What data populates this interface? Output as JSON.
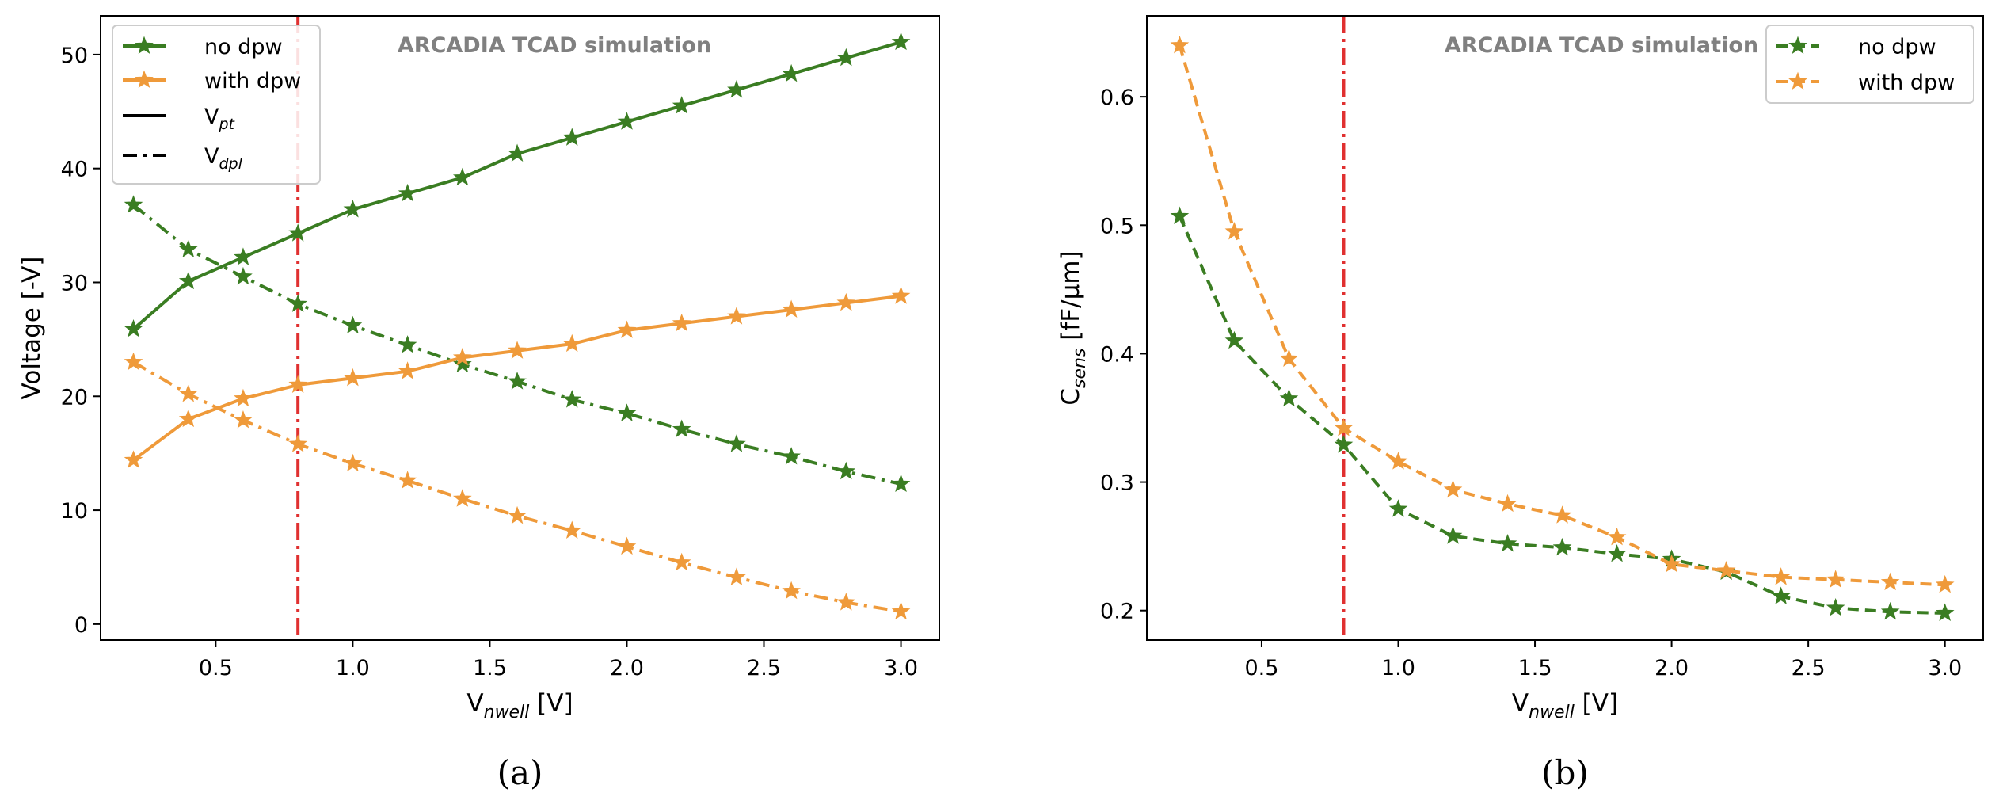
{
  "chart_data": [
    {
      "type": "line",
      "panel_label": "(a)",
      "annotation": "ARCADIA TCAD simulation",
      "xlabel_main": "V",
      "xlabel_sub": "nwell",
      "xlabel_unit": " [V]",
      "ylabel": "Voltage [-V]",
      "xlim": [
        0.08,
        3.14
      ],
      "ylim": [
        -1.4,
        53.4
      ],
      "xticks": [
        0.5,
        1.0,
        1.5,
        2.0,
        2.5,
        3.0
      ],
      "xtick_labels": [
        "0.5",
        "1.0",
        "1.5",
        "2.0",
        "2.5",
        "3.0"
      ],
      "yticks": [
        0,
        10,
        20,
        30,
        40,
        50
      ],
      "ytick_labels": [
        "0",
        "10",
        "20",
        "30",
        "40",
        "50"
      ],
      "vline_x": 0.8,
      "legend_position": "top-left",
      "legend": {
        "no_dpw": "no dpw",
        "with_dpw": "with dpw",
        "vpt_main": "V",
        "vpt_sub": "pt",
        "vdpl_main": "V",
        "vdpl_sub": "dpl"
      },
      "x": [
        0.2,
        0.4,
        0.6,
        0.8,
        1.0,
        1.2,
        1.4,
        1.6,
        1.8,
        2.0,
        2.2,
        2.4,
        2.6,
        2.8,
        3.0
      ],
      "series": [
        {
          "name": "no dpw V_pt",
          "color": "#3a7d22",
          "style": "solid",
          "values": [
            25.9,
            30.1,
            32.2,
            34.3,
            36.4,
            37.8,
            39.2,
            41.3,
            42.7,
            44.1,
            45.5,
            46.9,
            48.3,
            49.7,
            51.1
          ]
        },
        {
          "name": "no dpw V_dpl",
          "color": "#3a7d22",
          "style": "dashdot",
          "values": [
            36.8,
            32.9,
            30.5,
            28.1,
            26.2,
            24.5,
            22.8,
            21.3,
            19.7,
            18.5,
            17.1,
            15.8,
            14.7,
            13.4,
            12.3
          ]
        },
        {
          "name": "with dpw V_pt",
          "color": "#ef9a3a",
          "style": "solid",
          "values": [
            14.4,
            18.0,
            19.8,
            21.0,
            21.6,
            22.2,
            23.4,
            24.0,
            24.6,
            25.8,
            26.4,
            27.0,
            27.6,
            28.2,
            28.8
          ]
        },
        {
          "name": "with dpw V_dpl",
          "color": "#ef9a3a",
          "style": "dashdot",
          "values": [
            23.0,
            20.2,
            17.9,
            15.8,
            14.1,
            12.6,
            11.0,
            9.5,
            8.2,
            6.8,
            5.4,
            4.1,
            2.9,
            1.9,
            1.1
          ]
        }
      ]
    },
    {
      "type": "line",
      "panel_label": "(b)",
      "annotation": "ARCADIA TCAD simulation",
      "xlabel_main": "V",
      "xlabel_sub": "nwell",
      "xlabel_unit": " [V]",
      "ylabel_main": "C",
      "ylabel_sub": "sens",
      "ylabel_unit": " [fF/μm]",
      "xlim": [
        0.08,
        3.14
      ],
      "ylim": [
        0.177,
        0.663
      ],
      "xticks": [
        0.5,
        1.0,
        1.5,
        2.0,
        2.5,
        3.0
      ],
      "xtick_labels": [
        "0.5",
        "1.0",
        "1.5",
        "2.0",
        "2.5",
        "3.0"
      ],
      "yticks": [
        0.2,
        0.3,
        0.4,
        0.5,
        0.6
      ],
      "ytick_labels": [
        "0.2",
        "0.3",
        "0.4",
        "0.5",
        "0.6"
      ],
      "vline_x": 0.8,
      "legend_position": "top-right",
      "legend": {
        "no_dpw": "no dpw",
        "with_dpw": "with dpw"
      },
      "x": [
        0.2,
        0.4,
        0.6,
        0.8,
        1.0,
        1.2,
        1.4,
        1.6,
        1.8,
        2.0,
        2.2,
        2.4,
        2.6,
        2.8,
        3.0
      ],
      "series": [
        {
          "name": "no dpw",
          "color": "#3a7d22",
          "style": "dashed",
          "values": [
            0.507,
            0.41,
            0.365,
            0.329,
            0.279,
            0.258,
            0.252,
            0.249,
            0.244,
            0.24,
            0.23,
            0.211,
            0.202,
            0.199,
            0.198
          ]
        },
        {
          "name": "with dpw",
          "color": "#ef9a3a",
          "style": "dashed",
          "values": [
            0.64,
            0.495,
            0.396,
            0.342,
            0.316,
            0.294,
            0.283,
            0.274,
            0.257,
            0.236,
            0.231,
            0.226,
            0.224,
            0.222,
            0.22
          ]
        }
      ]
    }
  ],
  "colors": {
    "green": "#3a7d22",
    "orange": "#ef9a3a",
    "vline": "#e03030",
    "annotation": "#808080"
  }
}
